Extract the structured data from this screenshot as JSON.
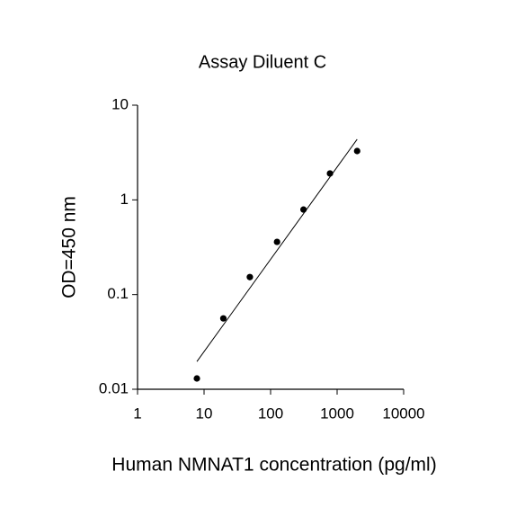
{
  "chart_data": {
    "type": "scatter",
    "title": "Assay Diluent C",
    "x_label": "Human NMNAT1 concentration (pg/ml)",
    "y_label": "OD=450 nm",
    "x": [
      7.8,
      19.5,
      48.8,
      125,
      312.5,
      781,
      2000
    ],
    "values": [
      0.013,
      0.056,
      0.153,
      0.36,
      0.79,
      1.9,
      3.28
    ],
    "color": "#000000",
    "fit_line": {
      "x": [
        7.8,
        2000
      ],
      "y": [
        0.0196,
        4.36
      ],
      "color": "#000000"
    },
    "xscale": "log",
    "yscale": "log",
    "xlim": [
      1,
      10000
    ],
    "ylim": [
      0.01,
      10
    ],
    "xticks": [
      1,
      10,
      100,
      1000,
      10000
    ],
    "yticks": [
      0.01,
      0.1,
      1,
      10
    ],
    "grid": false
  }
}
